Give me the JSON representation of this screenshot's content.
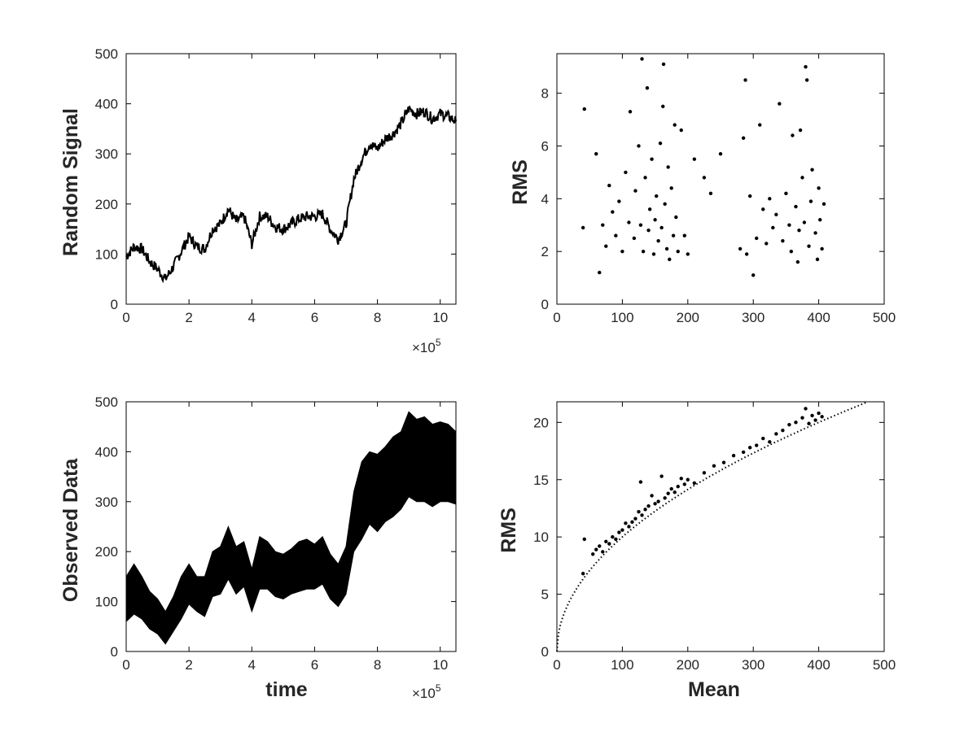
{
  "colors": {
    "ink": "#000000",
    "axis": "#262626"
  },
  "chart_data": [
    {
      "id": "p1",
      "type": "line",
      "title": "",
      "xlabel": "",
      "ylabel": "Random Signal",
      "xlim": [
        0,
        10.5
      ],
      "ylim": [
        0,
        500
      ],
      "xticks": [
        0,
        2,
        4,
        6,
        8,
        10
      ],
      "yticks": [
        0,
        100,
        200,
        300,
        400,
        500
      ],
      "x_multiplier": "×10",
      "x_multiplier_exp": "5",
      "series": [
        {
          "x": [
            0,
            0.25,
            0.5,
            0.75,
            1.0,
            1.25,
            1.5,
            1.75,
            2.0,
            2.25,
            2.5,
            2.75,
            3.0,
            3.25,
            3.5,
            3.75,
            4.0,
            4.25,
            4.5,
            4.75,
            5.0,
            5.25,
            5.5,
            5.75,
            6.0,
            6.25,
            6.5,
            6.75,
            7.0,
            7.25,
            7.5,
            7.75,
            8.0,
            8.25,
            8.5,
            8.75,
            9.0,
            9.25,
            9.5,
            9.75,
            10.0,
            10.25,
            10.5
          ],
          "y": [
            95,
            115,
            110,
            85,
            70,
            50,
            75,
            105,
            135,
            115,
            110,
            150,
            160,
            190,
            165,
            175,
            120,
            175,
            175,
            155,
            150,
            160,
            170,
            175,
            175,
            180,
            150,
            130,
            160,
            250,
            290,
            320,
            310,
            330,
            340,
            360,
            390,
            380,
            385,
            370,
            380,
            375,
            365
          ]
        }
      ]
    },
    {
      "id": "p2",
      "type": "scatter",
      "title": "",
      "xlabel": "",
      "ylabel": "RMS",
      "xlim": [
        0,
        500
      ],
      "ylim": [
        0,
        9.5
      ],
      "xticks": [
        0,
        100,
        200,
        300,
        400,
        500
      ],
      "yticks": [
        0,
        2,
        4,
        6,
        8
      ],
      "points": [
        [
          40,
          2.9
        ],
        [
          42,
          7.4
        ],
        [
          60,
          5.7
        ],
        [
          65,
          1.2
        ],
        [
          70,
          3.0
        ],
        [
          75,
          2.2
        ],
        [
          80,
          4.5
        ],
        [
          85,
          3.5
        ],
        [
          90,
          2.6
        ],
        [
          95,
          3.9
        ],
        [
          100,
          2.0
        ],
        [
          105,
          5.0
        ],
        [
          110,
          3.1
        ],
        [
          112,
          7.3
        ],
        [
          118,
          2.5
        ],
        [
          120,
          4.3
        ],
        [
          125,
          6.0
        ],
        [
          128,
          3.0
        ],
        [
          130,
          9.3
        ],
        [
          132,
          2.0
        ],
        [
          135,
          4.8
        ],
        [
          138,
          8.2
        ],
        [
          140,
          2.8
        ],
        [
          142,
          3.6
        ],
        [
          145,
          5.5
        ],
        [
          148,
          1.9
        ],
        [
          150,
          3.2
        ],
        [
          152,
          4.1
        ],
        [
          155,
          2.4
        ],
        [
          158,
          6.1
        ],
        [
          160,
          2.9
        ],
        [
          162,
          7.5
        ],
        [
          163,
          9.1
        ],
        [
          165,
          3.8
        ],
        [
          168,
          2.1
        ],
        [
          170,
          5.2
        ],
        [
          172,
          1.7
        ],
        [
          175,
          4.4
        ],
        [
          178,
          2.6
        ],
        [
          180,
          6.8
        ],
        [
          182,
          3.3
        ],
        [
          185,
          2.0
        ],
        [
          190,
          6.6
        ],
        [
          195,
          2.6
        ],
        [
          200,
          1.9
        ],
        [
          210,
          5.5
        ],
        [
          225,
          4.8
        ],
        [
          235,
          4.2
        ],
        [
          250,
          5.7
        ],
        [
          280,
          2.1
        ],
        [
          285,
          6.3
        ],
        [
          288,
          8.5
        ],
        [
          290,
          1.9
        ],
        [
          295,
          4.1
        ],
        [
          300,
          1.1
        ],
        [
          305,
          2.5
        ],
        [
          310,
          6.8
        ],
        [
          315,
          3.6
        ],
        [
          320,
          2.3
        ],
        [
          325,
          4.0
        ],
        [
          330,
          2.9
        ],
        [
          335,
          3.4
        ],
        [
          340,
          7.6
        ],
        [
          345,
          2.4
        ],
        [
          350,
          4.2
        ],
        [
          355,
          3.0
        ],
        [
          358,
          2.0
        ],
        [
          360,
          6.4
        ],
        [
          365,
          3.7
        ],
        [
          368,
          1.6
        ],
        [
          370,
          2.8
        ],
        [
          372,
          6.6
        ],
        [
          375,
          4.8
        ],
        [
          378,
          3.1
        ],
        [
          380,
          9.0
        ],
        [
          382,
          8.5
        ],
        [
          385,
          2.2
        ],
        [
          388,
          3.9
        ],
        [
          390,
          5.1
        ],
        [
          395,
          2.7
        ],
        [
          398,
          1.7
        ],
        [
          400,
          4.4
        ],
        [
          402,
          3.2
        ],
        [
          405,
          2.1
        ],
        [
          408,
          3.8
        ]
      ]
    },
    {
      "id": "p3",
      "type": "area",
      "title": "",
      "xlabel": "time",
      "ylabel": "Observed Data",
      "xlim": [
        0,
        10.5
      ],
      "ylim": [
        0,
        500
      ],
      "xticks": [
        0,
        2,
        4,
        6,
        8,
        10
      ],
      "yticks": [
        0,
        100,
        200,
        300,
        400,
        500
      ],
      "x_multiplier": "×10",
      "x_multiplier_exp": "5",
      "series": [
        {
          "x": [
            0,
            0.25,
            0.5,
            0.75,
            1.0,
            1.25,
            1.5,
            1.75,
            2.0,
            2.25,
            2.5,
            2.75,
            3.0,
            3.25,
            3.5,
            3.75,
            4.0,
            4.25,
            4.5,
            4.75,
            5.0,
            5.25,
            5.5,
            5.75,
            6.0,
            6.25,
            6.5,
            6.75,
            7.0,
            7.25,
            7.5,
            7.75,
            8.0,
            8.25,
            8.5,
            8.75,
            9.0,
            9.25,
            9.5,
            9.75,
            10.0,
            10.25,
            10.5
          ],
          "upper": [
            150,
            175,
            150,
            120,
            105,
            80,
            110,
            150,
            175,
            150,
            150,
            200,
            210,
            250,
            210,
            220,
            165,
            230,
            220,
            200,
            195,
            205,
            220,
            225,
            215,
            230,
            195,
            175,
            210,
            320,
            380,
            400,
            395,
            410,
            430,
            440,
            480,
            465,
            470,
            455,
            460,
            455,
            440
          ],
          "lower": [
            60,
            75,
            65,
            45,
            35,
            15,
            40,
            65,
            95,
            80,
            70,
            110,
            115,
            145,
            115,
            130,
            80,
            125,
            125,
            110,
            105,
            115,
            120,
            125,
            125,
            135,
            105,
            90,
            115,
            200,
            225,
            255,
            240,
            260,
            270,
            285,
            310,
            300,
            300,
            290,
            300,
            300,
            295
          ]
        }
      ]
    },
    {
      "id": "p4",
      "type": "scatter",
      "title": "",
      "xlabel": "Mean",
      "ylabel": "RMS",
      "xlim": [
        0,
        500
      ],
      "ylim": [
        0,
        21.8
      ],
      "xticks": [
        0,
        100,
        200,
        300,
        400,
        500
      ],
      "yticks": [
        0,
        5,
        10,
        15,
        20
      ],
      "fit_curve": "y = sqrt(x)",
      "points": [
        [
          40,
          6.8
        ],
        [
          42,
          9.8
        ],
        [
          55,
          8.5
        ],
        [
          60,
          8.9
        ],
        [
          65,
          9.2
        ],
        [
          70,
          8.7
        ],
        [
          75,
          9.6
        ],
        [
          80,
          9.4
        ],
        [
          85,
          10.0
        ],
        [
          90,
          9.8
        ],
        [
          95,
          10.4
        ],
        [
          100,
          10.6
        ],
        [
          105,
          11.2
        ],
        [
          110,
          10.9
        ],
        [
          115,
          11.3
        ],
        [
          120,
          11.6
        ],
        [
          125,
          12.2
        ],
        [
          128,
          14.8
        ],
        [
          130,
          11.9
        ],
        [
          135,
          12.4
        ],
        [
          140,
          12.7
        ],
        [
          145,
          13.6
        ],
        [
          150,
          12.9
        ],
        [
          155,
          13.1
        ],
        [
          160,
          15.3
        ],
        [
          165,
          13.4
        ],
        [
          170,
          13.8
        ],
        [
          175,
          14.2
        ],
        [
          180,
          13.9
        ],
        [
          185,
          14.4
        ],
        [
          190,
          15.1
        ],
        [
          195,
          14.6
        ],
        [
          200,
          15.0
        ],
        [
          210,
          14.7
        ],
        [
          225,
          15.6
        ],
        [
          240,
          16.2
        ],
        [
          255,
          16.5
        ],
        [
          270,
          17.1
        ],
        [
          285,
          17.4
        ],
        [
          295,
          17.8
        ],
        [
          305,
          18.0
        ],
        [
          315,
          18.6
        ],
        [
          325,
          18.3
        ],
        [
          335,
          19.0
        ],
        [
          345,
          19.3
        ],
        [
          355,
          19.8
        ],
        [
          365,
          20.0
        ],
        [
          375,
          20.4
        ],
        [
          380,
          21.2
        ],
        [
          385,
          19.9
        ],
        [
          390,
          20.6
        ],
        [
          395,
          20.2
        ],
        [
          400,
          20.8
        ],
        [
          405,
          20.5
        ]
      ]
    }
  ]
}
